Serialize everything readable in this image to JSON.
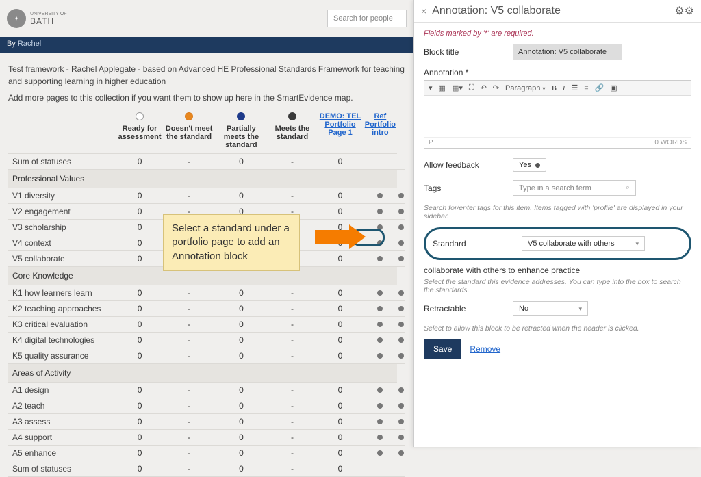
{
  "brand": {
    "name": "BATH",
    "sub": "UNIVERSITY OF"
  },
  "search": {
    "placeholder": "Search for people"
  },
  "byline": {
    "prefix": "By ",
    "author": "Rachel"
  },
  "description": {
    "line1": "Test framework - Rachel Applegate - based on Advanced HE Professional Standards Framework for teaching and supporting learning in higher education",
    "line2": "Add more pages to this collection if you want them to show up here in the SmartEvidence map."
  },
  "legend": {
    "ready": {
      "label": "Ready for assessment",
      "border": "#999999",
      "fill": "#ffffff"
    },
    "doesnt": {
      "label": "Doesn't meet the standard",
      "border": "#d97b1e",
      "fill": "#e8871e"
    },
    "partial": {
      "label": "Partially meets the standard",
      "border": "#1e3a8a",
      "fill": "#1e3a8a"
    },
    "meets": {
      "label": "Meets the standard",
      "border": "#3a3a3a",
      "fill": "#3a3a3a"
    }
  },
  "pageLinks": {
    "p1": "DEMO: TEL Portfolio Page 1",
    "p2": "Ref Portfolio intro"
  },
  "instruction": "Select a standard under a portfolio page to add an Annotation block",
  "sections": [
    {
      "type": "row",
      "label": "Sum of statuses",
      "c1": "0",
      "c2": "-",
      "c3": "0",
      "c4": "-",
      "c5": "0",
      "d1": "",
      "d2": ""
    },
    {
      "type": "section",
      "label": "Professional Values"
    },
    {
      "type": "row",
      "label": "V1 diversity",
      "c1": "0",
      "c2": "-",
      "c3": "0",
      "c4": "-",
      "c5": "0",
      "d1": "dot",
      "d2": "dot"
    },
    {
      "type": "row",
      "label": "V2 engagement",
      "c1": "0",
      "c2": "-",
      "c3": "0",
      "c4": "-",
      "c5": "0",
      "d1": "dot",
      "d2": "dot"
    },
    {
      "type": "row",
      "label": "V3 scholarship",
      "c1": "0",
      "c2": "-",
      "c3": "0",
      "c4": "-",
      "c5": "0",
      "d1": "dot",
      "d2": "dot"
    },
    {
      "type": "row",
      "label": "V4 context",
      "c1": "0",
      "c2": "-",
      "c3": "0",
      "c4": "-",
      "c5": "0",
      "d1": "dot",
      "d2": "dot"
    },
    {
      "type": "row",
      "label": "V5 collaborate",
      "c1": "0",
      "c2": "-",
      "c3": "0",
      "c4": "-",
      "c5": "0",
      "d1": "dot",
      "d2": "dot"
    },
    {
      "type": "section",
      "label": "Core Knowledge"
    },
    {
      "type": "row",
      "label": "K1 how learners learn",
      "c1": "0",
      "c2": "-",
      "c3": "0",
      "c4": "-",
      "c5": "0",
      "d1": "dot",
      "d2": "dot"
    },
    {
      "type": "row",
      "label": "K2 teaching approaches",
      "c1": "0",
      "c2": "-",
      "c3": "0",
      "c4": "-",
      "c5": "0",
      "d1": "dot",
      "d2": "dot"
    },
    {
      "type": "row",
      "label": "K3 critical evaluation",
      "c1": "0",
      "c2": "-",
      "c3": "0",
      "c4": "-",
      "c5": "0",
      "d1": "dot",
      "d2": "dot"
    },
    {
      "type": "row",
      "label": "K4 digital technologies",
      "c1": "0",
      "c2": "-",
      "c3": "0",
      "c4": "-",
      "c5": "0",
      "d1": "dot",
      "d2": "dot"
    },
    {
      "type": "row",
      "label": "K5 quality assurance",
      "c1": "0",
      "c2": "-",
      "c3": "0",
      "c4": "-",
      "c5": "0",
      "d1": "dot",
      "d2": "dot"
    },
    {
      "type": "section",
      "label": "Areas of Activity"
    },
    {
      "type": "row",
      "label": "A1 design",
      "c1": "0",
      "c2": "-",
      "c3": "0",
      "c4": "-",
      "c5": "0",
      "d1": "dot",
      "d2": "dot"
    },
    {
      "type": "row",
      "label": "A2 teach",
      "c1": "0",
      "c2": "-",
      "c3": "0",
      "c4": "-",
      "c5": "0",
      "d1": "dot",
      "d2": "dot"
    },
    {
      "type": "row",
      "label": "A3 assess",
      "c1": "0",
      "c2": "-",
      "c3": "0",
      "c4": "-",
      "c5": "0",
      "d1": "dot",
      "d2": "dot"
    },
    {
      "type": "row",
      "label": "A4 support",
      "c1": "0",
      "c2": "-",
      "c3": "0",
      "c4": "-",
      "c5": "0",
      "d1": "dot",
      "d2": "dot"
    },
    {
      "type": "row",
      "label": "A5 enhance",
      "c1": "0",
      "c2": "-",
      "c3": "0",
      "c4": "-",
      "c5": "0",
      "d1": "dot",
      "d2": "dot"
    },
    {
      "type": "row",
      "label": "Sum of statuses",
      "c1": "0",
      "c2": "-",
      "c3": "0",
      "c4": "-",
      "c5": "0",
      "d1": "",
      "d2": ""
    }
  ],
  "panel": {
    "title": "Annotation: V5 collaborate",
    "requiredNote": "Fields marked by '*' are required.",
    "blockTitleLabel": "Block title",
    "blockTitleValue": "Annotation: V5 collaborate",
    "annotationLabel": "Annotation *",
    "editor": {
      "paragraph": "Paragraph",
      "status_p": "P",
      "words": "0 WORDS"
    },
    "allowFeedback": {
      "label": "Allow feedback",
      "value": "Yes"
    },
    "tags": {
      "label": "Tags",
      "placeholder": "Type in a search term",
      "hint": "Search for/enter tags for this item. Items tagged with 'profile' are displayed in your sidebar."
    },
    "standard": {
      "label": "Standard",
      "value": "V5 collaborate with others",
      "desc": "collaborate with others to enhance practice",
      "hint": "Select the standard this evidence addresses. You can type into the box to search the standards."
    },
    "retractable": {
      "label": "Retractable",
      "value": "No",
      "hint": "Select to allow this block to be retracted when the header is clicked."
    },
    "save": "Save",
    "remove": "Remove"
  }
}
